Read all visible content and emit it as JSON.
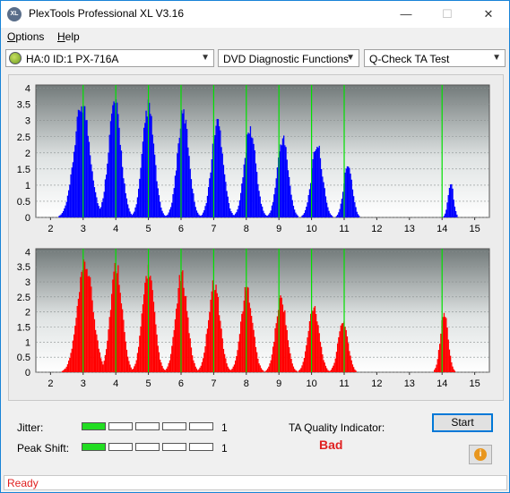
{
  "window": {
    "title": "PlexTools Professional XL V3.16",
    "icon_text": "XL"
  },
  "menu": {
    "options": "Options",
    "options_key": "O",
    "options_rest": "ptions",
    "help_key": "H",
    "help_rest": "elp"
  },
  "toolbar": {
    "drive": "HA:0 ID:1  PX-716A",
    "function": "DVD Diagnostic Functions",
    "test": "Q-Check TA Test"
  },
  "colors": {
    "top_series": "#0000ff",
    "bottom_series": "#ff0000",
    "marker": "#00e000",
    "accent": "#0078d7"
  },
  "chart_data": [
    {
      "type": "bar",
      "id": "land-jitter",
      "x_ticks": [
        2,
        3,
        4,
        5,
        6,
        7,
        8,
        9,
        10,
        11,
        12,
        13,
        14,
        15
      ],
      "y_ticks": [
        "0",
        "0.5",
        "1",
        "1.5",
        "2",
        "2.5",
        "3",
        "3.5",
        "4"
      ],
      "xlim": [
        1.55,
        15.45
      ],
      "ylim": [
        0,
        4.1
      ],
      "markers": [
        3,
        4,
        5,
        6,
        7,
        8,
        9,
        10,
        11,
        14
      ],
      "peaks": [
        {
          "x": 2.95,
          "y": 3.5,
          "w": 0.4
        },
        {
          "x": 3.95,
          "y": 3.55,
          "w": 0.32
        },
        {
          "x": 4.98,
          "y": 3.42,
          "w": 0.3
        },
        {
          "x": 6.05,
          "y": 3.2,
          "w": 0.3
        },
        {
          "x": 7.1,
          "y": 2.95,
          "w": 0.3
        },
        {
          "x": 8.1,
          "y": 2.7,
          "w": 0.3
        },
        {
          "x": 9.1,
          "y": 2.45,
          "w": 0.28
        },
        {
          "x": 10.15,
          "y": 2.25,
          "w": 0.28
        },
        {
          "x": 11.1,
          "y": 1.65,
          "w": 0.22
        },
        {
          "x": 14.25,
          "y": 1.05,
          "w": 0.14
        }
      ],
      "ranges": [
        [
          1.6,
          11.6
        ],
        [
          13.9,
          14.6
        ]
      ]
    },
    {
      "type": "bar",
      "id": "pit-jitter",
      "x_ticks": [
        2,
        3,
        4,
        5,
        6,
        7,
        8,
        9,
        10,
        11,
        12,
        13,
        14,
        15
      ],
      "y_ticks": [
        "0",
        "0.5",
        "1",
        "1.5",
        "2",
        "2.5",
        "3",
        "3.5",
        "4"
      ],
      "xlim": [
        1.55,
        15.45
      ],
      "ylim": [
        0,
        4.1
      ],
      "markers": [
        3,
        4,
        5,
        6,
        7,
        8,
        9,
        10,
        11,
        14
      ],
      "peaks": [
        {
          "x": 3.05,
          "y": 3.55,
          "w": 0.4
        },
        {
          "x": 4.0,
          "y": 3.55,
          "w": 0.3
        },
        {
          "x": 4.98,
          "y": 3.4,
          "w": 0.3
        },
        {
          "x": 6.0,
          "y": 3.2,
          "w": 0.3
        },
        {
          "x": 7.0,
          "y": 2.95,
          "w": 0.3
        },
        {
          "x": 8.0,
          "y": 2.75,
          "w": 0.3
        },
        {
          "x": 9.05,
          "y": 2.45,
          "w": 0.28
        },
        {
          "x": 10.05,
          "y": 2.2,
          "w": 0.28
        },
        {
          "x": 10.95,
          "y": 1.7,
          "w": 0.25
        },
        {
          "x": 14.05,
          "y": 1.95,
          "w": 0.2
        }
      ],
      "ranges": [
        [
          2.0,
          11.6
        ],
        [
          13.6,
          14.5
        ]
      ]
    }
  ],
  "quality": {
    "jitter_label": "Jitter:",
    "jitter_value": "1",
    "jitter_level": 1,
    "peak_label": "Peak Shift:",
    "peak_value": "1",
    "peak_level": 1,
    "indicator_label": "TA Quality Indicator:",
    "indicator_value": "Bad",
    "start_label": "Start",
    "info_icon": "i"
  },
  "status": {
    "text": "Ready"
  }
}
